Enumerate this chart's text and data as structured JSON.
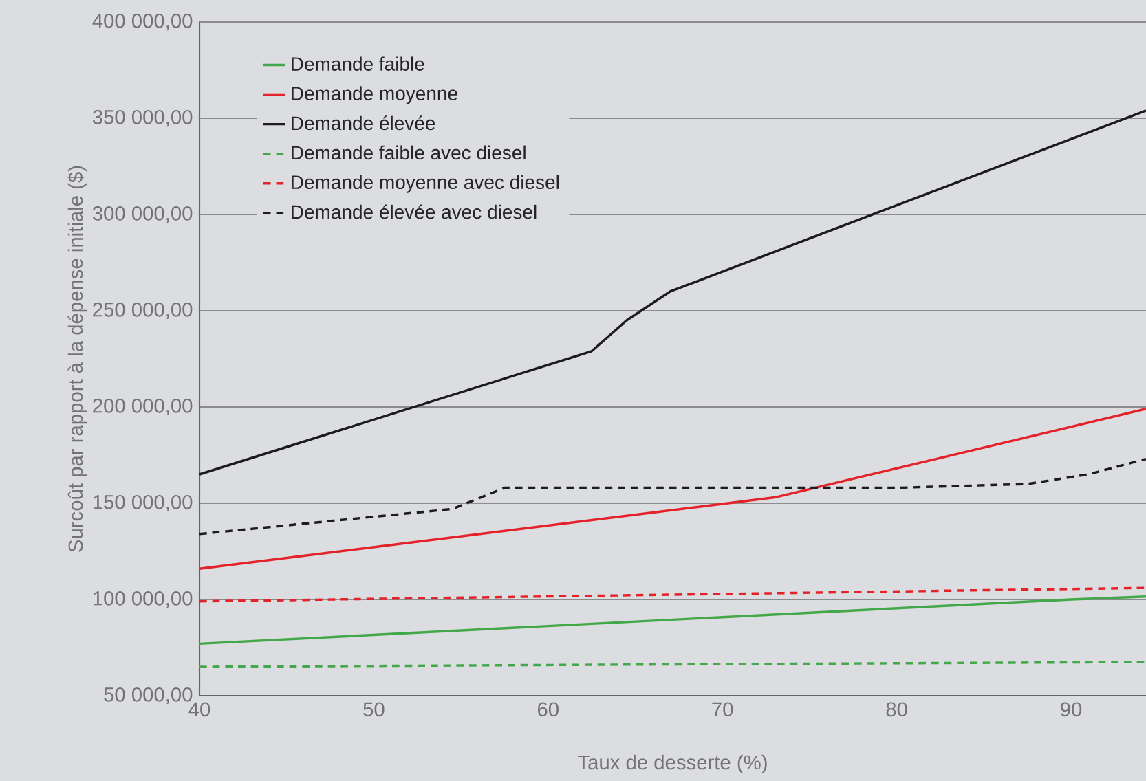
{
  "chart_data": {
    "type": "line",
    "xlabel": "Taux de desserte (%)",
    "ylabel": "Surcoût par rapport à la dépense initiale ($)",
    "xlim": [
      40,
      94.3
    ],
    "ylim": [
      50000,
      400000
    ],
    "xticks": [
      40,
      50,
      60,
      70,
      80,
      90
    ],
    "yticks": [
      {
        "value": 50000,
        "label": "50 000,00"
      },
      {
        "value": 100000,
        "label": "100 000,00"
      },
      {
        "value": 150000,
        "label": "150 000,00"
      },
      {
        "value": 200000,
        "label": "200 000,00"
      },
      {
        "value": 250000,
        "label": "250 000,00"
      },
      {
        "value": 300000,
        "label": "300 000,00"
      },
      {
        "value": 350000,
        "label": "350 000,00"
      },
      {
        "value": 400000,
        "label": "400 000,00"
      }
    ],
    "grid": "y",
    "legend": "top left",
    "marker": "none",
    "series": [
      {
        "name": "Demande faible",
        "color": "#43a84a",
        "line_style": "solid",
        "x": [
          40,
          90,
          94.3
        ],
        "values": [
          77000,
          100000,
          101500
        ]
      },
      {
        "name": "Demande moyenne",
        "color": "#e4222a",
        "line_style": "solid",
        "x": [
          40,
          73,
          94.3
        ],
        "values": [
          116000,
          153000,
          199000
        ]
      },
      {
        "name": "Demande élevée",
        "color": "#1c1c1c",
        "line_style": "solid",
        "x": [
          40,
          62.5,
          64.5,
          67,
          94.3
        ],
        "values": [
          165000,
          229000,
          245000,
          260000,
          354000
        ]
      },
      {
        "name": "Demande faible avec diesel",
        "color": "#43a84a",
        "line_style": "dashed",
        "x": [
          40,
          94.3
        ],
        "values": [
          65000,
          67500
        ]
      },
      {
        "name": "Demande moyenne avec diesel",
        "color": "#e4222a",
        "line_style": "dashed",
        "x": [
          40,
          94.3
        ],
        "values": [
          99000,
          106000
        ]
      },
      {
        "name": "Demande élevée avec diesel",
        "color": "#1c1c1c",
        "line_style": "dashed",
        "x": [
          40,
          54.5,
          57.5,
          80,
          87.5,
          91,
          94.3
        ],
        "values": [
          134000,
          147000,
          158000,
          158000,
          160000,
          165000,
          173000
        ]
      }
    ]
  }
}
